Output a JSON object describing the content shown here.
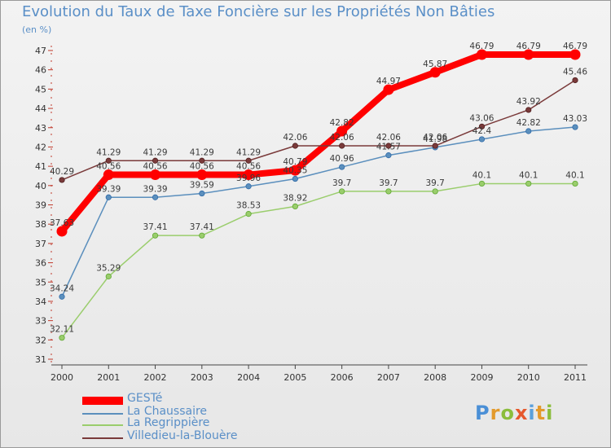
{
  "chart_data": {
    "type": "line",
    "title": "Evolution du Taux de Taxe Foncière sur les Propriétés Non Bâties",
    "subtitle": "(en %)",
    "x": [
      "2000",
      "2001",
      "2002",
      "2003",
      "2004",
      "2005",
      "2006",
      "2007",
      "2008",
      "2009",
      "2010",
      "2011"
    ],
    "y_ticks": [
      "31",
      "32",
      "33",
      "34",
      "35",
      "36",
      "37",
      "38",
      "39",
      "40",
      "41",
      "42",
      "43",
      "44",
      "45",
      "46",
      "47"
    ],
    "ylim": [
      31,
      47
    ],
    "grid": false,
    "legend_position": "bottom-left",
    "series": [
      {
        "name": "GESTé",
        "color": "#ff0000",
        "values": [
          37.63,
          40.56,
          40.56,
          40.56,
          40.56,
          40.79,
          42.82,
          44.97,
          45.87,
          46.79,
          46.79,
          46.79
        ],
        "labels": [
          "37.63",
          "40.56",
          "40.56",
          "40.56",
          "40.56",
          "40.79",
          "42.82",
          "44.97",
          "45.87",
          "46.79",
          "46.79",
          "46.79"
        ]
      },
      {
        "name": "La Chaussaire",
        "color": "#5b8fbd",
        "values": [
          34.24,
          39.39,
          39.39,
          39.59,
          39.96,
          40.35,
          40.96,
          41.57,
          41.98,
          42.4,
          42.82,
          43.03
        ],
        "labels": [
          "34.24",
          "39.39",
          "39.39",
          "39.59",
          "39.96",
          "40.35",
          "40.96",
          "41.57",
          "41.98",
          "42.4",
          "42.82",
          "43.03"
        ]
      },
      {
        "name": "La Regrippière",
        "color": "#9acd6c",
        "values": [
          32.11,
          35.29,
          37.41,
          37.41,
          38.53,
          38.92,
          39.7,
          39.7,
          39.7,
          40.1,
          40.1,
          40.1
        ],
        "labels": [
          "32.11",
          "35.29",
          "37.41",
          "37.41",
          "38.53",
          "38.92",
          "39.7",
          "39.7",
          "39.7",
          "40.1",
          "40.1",
          "40.1"
        ]
      },
      {
        "name": "Villedieu-la-Blouère",
        "color": "#7a3a3a",
        "values": [
          40.29,
          41.29,
          41.29,
          41.29,
          41.29,
          42.06,
          42.06,
          42.06,
          42.06,
          43.06,
          43.92,
          45.46
        ],
        "labels": [
          "40.29",
          "41.29",
          "41.29",
          "41.29",
          "41.29",
          "42.06",
          "42.06",
          "42.06",
          "42.06",
          "43.06",
          "43.92",
          "45.46"
        ]
      }
    ]
  },
  "logo": {
    "letters": [
      "P",
      "r",
      "o",
      "x",
      "i",
      "t",
      "i"
    ]
  }
}
